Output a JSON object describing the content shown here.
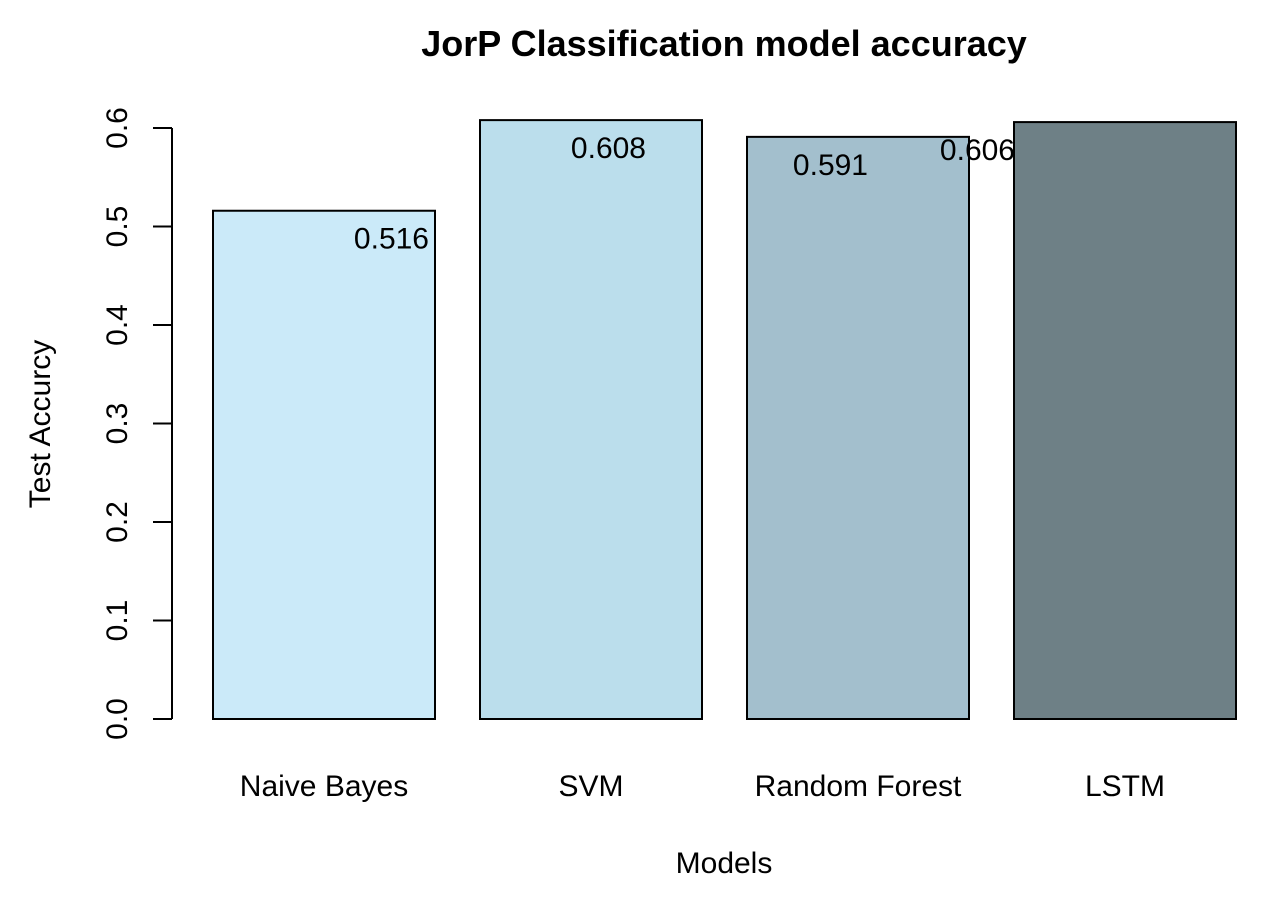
{
  "chart_data": {
    "type": "bar",
    "title": "JorP Classification model accuracy",
    "xlabel": "Models",
    "ylabel": "Test Accurcy",
    "categories": [
      "Naive Bayes",
      "SVM",
      "Random Forest",
      "LSTM"
    ],
    "values": [
      0.516,
      0.608,
      0.591,
      0.606
    ],
    "data_labels": [
      "0.516",
      "0.608",
      "0.591",
      "0.606"
    ],
    "ylim": [
      0,
      0.6
    ],
    "yticks": [
      0.0,
      0.1,
      0.2,
      0.3,
      0.4,
      0.5,
      0.6
    ],
    "ytick_labels": [
      "0.0",
      "0.1",
      "0.2",
      "0.3",
      "0.4",
      "0.5",
      "0.6"
    ],
    "colors": [
      "#cbeaf9",
      "#bbdeec",
      "#a3bfcd",
      "#6e8086"
    ],
    "grid": false,
    "legend": "none"
  }
}
